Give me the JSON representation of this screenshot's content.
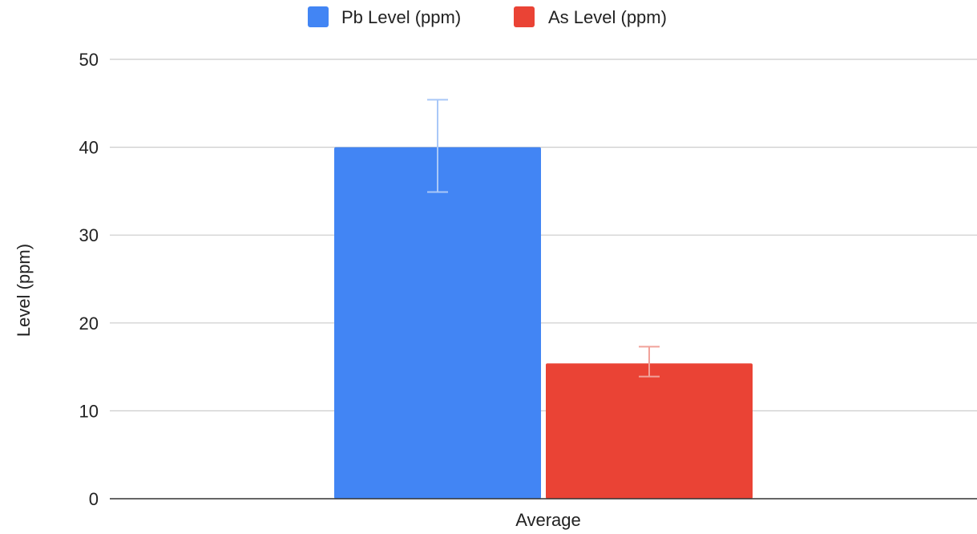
{
  "chart_data": {
    "type": "bar",
    "title": "",
    "xlabel": "",
    "ylabel": "Level (ppm)",
    "categories": [
      "Average"
    ],
    "ylim": [
      0,
      50
    ],
    "yticks": [
      0,
      10,
      20,
      30,
      40,
      50
    ],
    "grid": true,
    "legend_position": "top-center",
    "series": [
      {
        "name": "Pb Level (ppm)",
        "values": [
          40
        ],
        "error_low": [
          34.9
        ],
        "error_high": [
          45.4
        ],
        "color": "#4285f4",
        "error_color": "#a9c8f8"
      },
      {
        "name": "As Level (ppm)",
        "values": [
          15.4
        ],
        "error_low": [
          13.9
        ],
        "error_high": [
          17.3
        ],
        "color": "#ea4335",
        "error_color": "#f1a29a"
      }
    ]
  }
}
